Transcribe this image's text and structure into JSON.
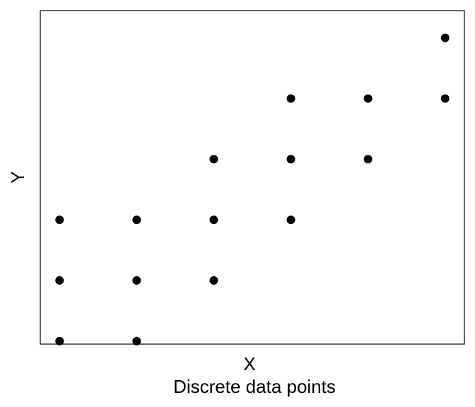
{
  "chart_data": {
    "type": "scatter",
    "xlabel": "X",
    "ylabel": "Y",
    "caption": "Discrete data points",
    "xlim": [
      0.75,
      6.25
    ],
    "ylim": [
      0.95,
      6.45
    ],
    "grid": false,
    "axes_ticks_shown": false,
    "marker_color": "#000000",
    "points": [
      {
        "x": 1,
        "y": 1
      },
      {
        "x": 2,
        "y": 1
      },
      {
        "x": 1,
        "y": 2
      },
      {
        "x": 2,
        "y": 2
      },
      {
        "x": 3,
        "y": 2
      },
      {
        "x": 1,
        "y": 3
      },
      {
        "x": 2,
        "y": 3
      },
      {
        "x": 3,
        "y": 3
      },
      {
        "x": 4,
        "y": 3
      },
      {
        "x": 3,
        "y": 4
      },
      {
        "x": 4,
        "y": 4
      },
      {
        "x": 5,
        "y": 4
      },
      {
        "x": 4,
        "y": 5
      },
      {
        "x": 5,
        "y": 5
      },
      {
        "x": 6,
        "y": 5
      },
      {
        "x": 6,
        "y": 6
      }
    ]
  }
}
